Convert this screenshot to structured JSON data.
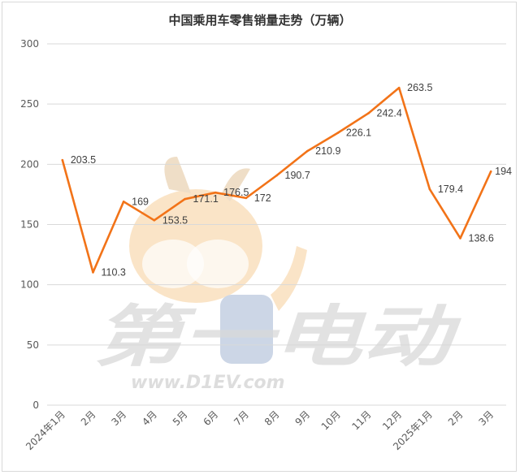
{
  "chart_data": {
    "type": "line",
    "title": "中国乘用车零售销量走势（万辆）",
    "categories": [
      "2024年1月",
      "2月",
      "3月",
      "4月",
      "5月",
      "6月",
      "7月",
      "8月",
      "9月",
      "10月",
      "11月",
      "12月",
      "2025年1月",
      "2月",
      "3月"
    ],
    "series": [
      {
        "values": [
          203.5,
          110.3,
          169,
          153.5,
          171.1,
          176.5,
          172,
          190.7,
          210.9,
          226.1,
          242.4,
          263.5,
          179.4,
          138.6,
          194
        ]
      }
    ],
    "data_labels": [
      "203.5",
      "110.3",
      "169",
      "153.5",
      "171.1",
      "176.5",
      "172",
      "190.7",
      "210.9",
      "226.1",
      "242.4",
      "263.5",
      "179.4",
      "138.6",
      "194"
    ],
    "yticks": [
      "0",
      "50",
      "100",
      "150",
      "200",
      "250",
      "300"
    ],
    "ylim": [
      0,
      300
    ],
    "grid": true,
    "legend": "none",
    "line_color": "#f27318",
    "watermark": {
      "brand": "第一电动",
      "url": "www.D1EV.com"
    }
  }
}
